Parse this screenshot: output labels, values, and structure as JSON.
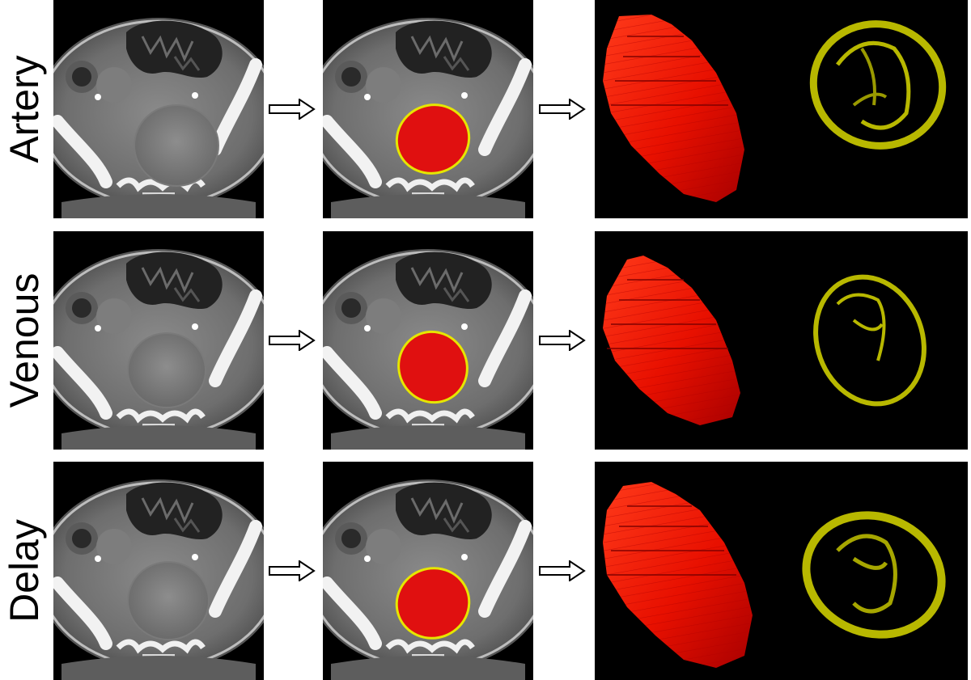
{
  "rows": [
    {
      "label": "Artery"
    },
    {
      "label": "Venous"
    },
    {
      "label": "Delay"
    }
  ],
  "colors": {
    "segmentation_fill": "#e01010",
    "segmentation_outline": "#e6e600",
    "volume_red": "#ff1a00",
    "surface_yellow": "#b8b800",
    "background": "#000000"
  },
  "icons": [
    "arrow-right-outline-icon"
  ]
}
